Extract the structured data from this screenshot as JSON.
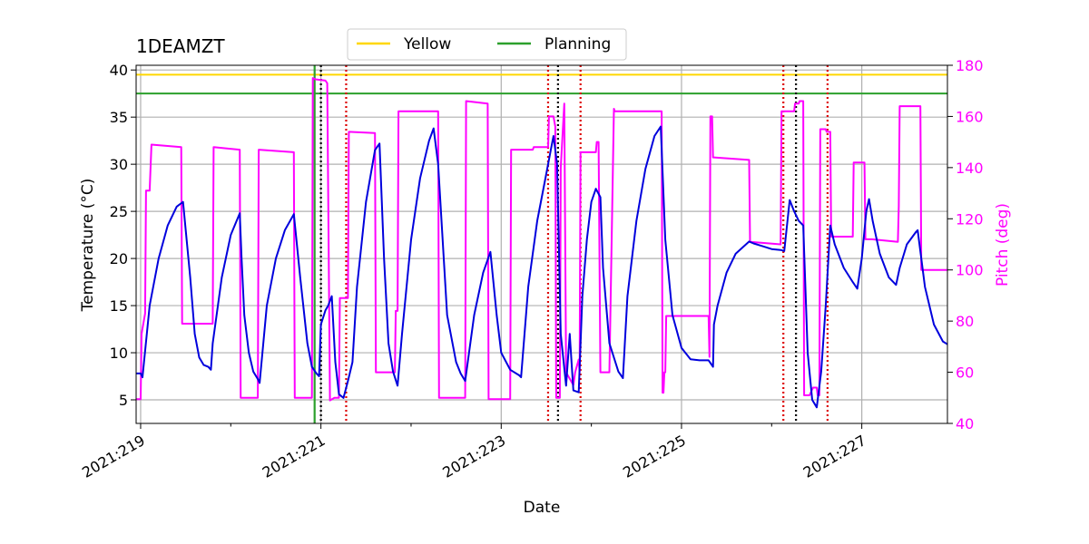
{
  "chart_data": {
    "type": "line",
    "title": "1DEAMZT",
    "xlabel": "Date",
    "ylabel": "Temperature ($^\\circ$C)",
    "ylabel_display": "Temperature (°C)",
    "y2label": "Pitch (deg)",
    "xlim": [
      218.95,
      227.95
    ],
    "ylim": [
      2.5,
      40.5
    ],
    "y2lim": [
      40,
      180
    ],
    "x_ticks": [
      219,
      221,
      223,
      225,
      227
    ],
    "x_tick_labels": [
      "2021:219",
      "2021:221",
      "2021:223",
      "2021:225",
      "2021:227"
    ],
    "y_ticks": [
      5,
      10,
      15,
      20,
      25,
      30,
      35,
      40
    ],
    "y2_ticks": [
      40,
      60,
      80,
      100,
      120,
      140,
      160,
      180
    ],
    "grid": true,
    "legend_position": "top-center",
    "limit_lines": [
      {
        "name": "Yellow",
        "y": 39.5,
        "color": "#FFD700"
      },
      {
        "name": "Planning",
        "y": 37.5,
        "color": "#2CA02C"
      }
    ],
    "series": [
      {
        "name": "temperature",
        "axis": "left",
        "color": "#0000DD",
        "x": [
          218.93,
          219.0,
          219.02,
          219.1,
          219.2,
          219.3,
          219.4,
          219.47,
          219.55,
          219.6,
          219.65,
          219.7,
          219.75,
          219.78,
          219.8,
          219.9,
          220.0,
          220.1,
          220.12,
          220.15,
          220.2,
          220.25,
          220.3,
          220.32,
          220.4,
          220.5,
          220.6,
          220.7,
          220.77,
          220.85,
          220.9,
          220.95,
          220.98,
          221.0,
          221.05,
          221.08,
          221.12,
          221.16,
          221.2,
          221.25,
          221.3,
          221.35,
          221.4,
          221.5,
          221.6,
          221.65,
          221.7,
          221.75,
          221.8,
          221.85,
          221.9,
          222.0,
          222.1,
          222.2,
          222.25,
          222.3,
          222.4,
          222.5,
          222.55,
          222.6,
          222.7,
          222.8,
          222.88,
          222.95,
          223.0,
          223.1,
          223.2,
          223.22,
          223.3,
          223.4,
          223.5,
          223.55,
          223.58,
          223.62,
          223.66,
          223.72,
          223.76,
          223.8,
          223.86,
          223.9,
          223.95,
          224.0,
          224.05,
          224.1,
          224.13,
          224.2,
          224.3,
          224.35,
          224.4,
          224.5,
          224.6,
          224.7,
          224.77,
          224.82,
          224.9,
          225.0,
          225.1,
          225.2,
          225.3,
          225.35,
          225.36,
          225.4,
          225.5,
          225.6,
          225.75,
          225.8,
          225.9,
          226.0,
          226.1,
          226.14,
          226.2,
          226.25,
          226.3,
          226.35,
          226.4,
          226.45,
          226.5,
          226.55,
          226.6,
          226.65,
          226.7,
          226.8,
          226.9,
          226.95,
          227.0,
          227.05,
          227.08,
          227.12,
          227.2,
          227.3,
          227.38,
          227.42,
          227.5,
          227.6,
          227.62,
          227.7,
          227.8,
          227.9,
          227.95
        ],
        "y": [
          7.8,
          7.8,
          7.4,
          15.0,
          20.0,
          23.5,
          25.5,
          26.0,
          18.0,
          12.0,
          9.5,
          8.7,
          8.5,
          8.2,
          11.0,
          18.0,
          22.5,
          24.8,
          20.0,
          14.0,
          10.0,
          8.0,
          7.2,
          6.8,
          15.0,
          20.0,
          23.0,
          24.7,
          18.0,
          11.0,
          8.5,
          7.8,
          7.5,
          13.0,
          14.5,
          15.0,
          16.0,
          9.0,
          5.6,
          5.2,
          7.0,
          9.0,
          17.0,
          26.0,
          31.5,
          32.2,
          20.0,
          11.0,
          8.0,
          6.5,
          12.0,
          22.0,
          28.5,
          32.5,
          33.8,
          30.0,
          14.0,
          9.0,
          7.8,
          7.0,
          14.0,
          18.5,
          20.7,
          14.0,
          10.0,
          8.2,
          7.6,
          7.4,
          17.0,
          24.0,
          29.0,
          31.5,
          33.0,
          30.0,
          12.0,
          6.5,
          12.0,
          6.0,
          5.8,
          16.0,
          22.0,
          26.0,
          27.4,
          26.5,
          19.0,
          11.0,
          8.0,
          7.3,
          16.0,
          24.0,
          29.5,
          33.0,
          34.0,
          22.0,
          14.0,
          10.5,
          9.3,
          9.2,
          9.2,
          8.5,
          13.0,
          15.0,
          18.5,
          20.5,
          21.8,
          21.6,
          21.3,
          21.0,
          20.9,
          20.8,
          26.2,
          25.0,
          24.0,
          23.5,
          10.0,
          5.0,
          4.2,
          8.0,
          15.0,
          23.5,
          21.5,
          19.0,
          17.5,
          16.8,
          20.0,
          25.0,
          26.3,
          24.0,
          20.5,
          18.0,
          17.2,
          19.0,
          21.5,
          22.8,
          23.0,
          17.0,
          13.0,
          11.2,
          10.9
        ]
      },
      {
        "name": "pitch",
        "axis": "right",
        "color": "#FF00FF",
        "x": [
          218.93,
          219.0,
          219.01,
          219.05,
          219.06,
          219.1,
          219.12,
          219.45,
          219.46,
          219.8,
          219.81,
          220.1,
          220.11,
          220.3,
          220.31,
          220.7,
          220.71,
          220.9,
          220.91,
          220.94,
          221.05,
          221.06,
          221.07,
          221.1,
          221.15,
          221.2,
          221.21,
          221.3,
          221.31,
          221.6,
          221.61,
          221.7,
          221.71,
          221.82,
          221.83,
          221.85,
          221.86,
          222.3,
          222.31,
          222.6,
          222.61,
          222.85,
          222.86,
          223.1,
          223.11,
          223.35,
          223.36,
          223.52,
          223.53,
          223.58,
          223.6,
          223.61,
          223.65,
          223.66,
          223.7,
          223.72,
          223.8,
          223.82,
          223.86,
          223.87,
          223.88,
          224.05,
          224.06,
          224.08,
          224.1,
          224.11,
          224.2,
          224.25,
          224.26,
          224.4,
          224.41,
          224.78,
          224.79,
          224.8,
          224.81,
          224.82,
          224.83,
          225.3,
          225.31,
          225.32,
          225.34,
          225.35,
          225.36,
          225.75,
          225.76,
          226.1,
          226.11,
          226.25,
          226.26,
          226.3,
          226.31,
          226.35,
          226.36,
          226.42,
          226.46,
          226.5,
          226.51,
          226.53,
          226.54,
          226.6,
          226.61,
          226.65,
          226.66,
          226.9,
          226.91,
          226.92,
          227.03,
          227.04,
          227.1,
          227.11,
          227.4,
          227.41,
          227.42,
          227.65,
          227.66,
          227.67,
          227.95
        ],
        "y": [
          49.5,
          49.5,
          75.0,
          83.0,
          131.0,
          131.0,
          149.0,
          148.0,
          79.0,
          79.0,
          148.0,
          147.0,
          50.0,
          50.0,
          147.0,
          146.0,
          50.0,
          50.0,
          175.0,
          174.5,
          174.0,
          173.5,
          173.0,
          49.0,
          50.0,
          50.0,
          89.0,
          89.0,
          154.0,
          153.5,
          60.0,
          60.0,
          60.0,
          60.0,
          84.0,
          84.0,
          162.0,
          162.0,
          50.0,
          50.0,
          166.0,
          165.0,
          49.5,
          49.5,
          147.0,
          147.0,
          148.0,
          148.0,
          160.0,
          160.0,
          156.0,
          50.0,
          50.0,
          140.0,
          165.0,
          60.0,
          55.0,
          60.0,
          65.0,
          60.0,
          146.0,
          146.0,
          150.0,
          150.0,
          60.0,
          60.0,
          60.0,
          163.0,
          162.0,
          162.0,
          162.0,
          162.0,
          52.0,
          52.0,
          60.0,
          60.0,
          82.0,
          82.0,
          66.0,
          160.0,
          160.0,
          144.0,
          144.0,
          143.0,
          111.0,
          110.0,
          162.0,
          162.0,
          165.0,
          165.0,
          166.0,
          166.0,
          51.0,
          51.0,
          54.0,
          54.0,
          51.0,
          51.0,
          155.0,
          155.0,
          154.0,
          154.0,
          113.0,
          113.0,
          142.0,
          142.0,
          142.0,
          112.0,
          112.0,
          112.0,
          111.0,
          125.0,
          164.0,
          164.0,
          100.0,
          100.0,
          100.0
        ]
      }
    ],
    "vertical_lines": [
      {
        "x": 220.93,
        "color": "#2CA02C",
        "style": "solid"
      },
      {
        "x": 221.0,
        "color": "#000000",
        "style": "dotted"
      },
      {
        "x": 221.28,
        "color": "#DD0000",
        "style": "dotted"
      },
      {
        "x": 223.52,
        "color": "#DD0000",
        "style": "dotted"
      },
      {
        "x": 223.63,
        "color": "#000000",
        "style": "dotted"
      },
      {
        "x": 223.88,
        "color": "#DD0000",
        "style": "dotted"
      },
      {
        "x": 226.13,
        "color": "#DD0000",
        "style": "dotted"
      },
      {
        "x": 226.27,
        "color": "#000000",
        "style": "dotted"
      },
      {
        "x": 226.62,
        "color": "#DD0000",
        "style": "dotted"
      }
    ]
  }
}
